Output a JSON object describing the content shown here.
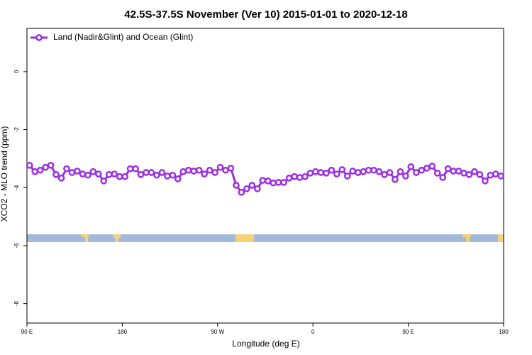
{
  "chart_data": {
    "type": "line",
    "title": "42.5S-37.5S November (Ver 10)   2015-01-01 to 2020-12-18",
    "x_label": "Longitude (deg E)",
    "y_label": "XCO2 - MLO trend (ppm)",
    "xlim": [
      90,
      540
    ],
    "ylim": [
      -8.67,
      1.49
    ],
    "xticks": [
      {
        "value": 90,
        "label": "90 E"
      },
      {
        "value": 180,
        "label": "180"
      },
      {
        "value": 270,
        "label": "90 W"
      },
      {
        "value": 360,
        "label": "0"
      },
      {
        "value": 450,
        "label": "90 E"
      },
      {
        "value": 540,
        "label": "180"
      }
    ],
    "yticks": [
      0,
      -2,
      -4,
      -6,
      -8
    ],
    "legend_position": "top-left",
    "x": [
      92.5,
      97.5,
      102.5,
      107.5,
      112.5,
      117.5,
      122.5,
      127.5,
      132.5,
      137.5,
      142.5,
      147.5,
      152.5,
      157.5,
      162.5,
      167.5,
      172.5,
      177.5,
      182.5,
      187.5,
      192.5,
      197.5,
      202.5,
      207.5,
      212.5,
      217.5,
      222.5,
      227.5,
      232.5,
      237.5,
      242.5,
      247.5,
      252.5,
      257.5,
      262.5,
      267.5,
      272.5,
      277.5,
      282.5,
      287.5,
      292.5,
      297.5,
      302.5,
      307.5,
      312.5,
      317.5,
      322.5,
      327.5,
      332.5,
      337.5,
      342.5,
      347.5,
      352.5,
      357.5,
      362.5,
      367.5,
      372.5,
      377.5,
      382.5,
      387.5,
      392.5,
      397.5,
      402.5,
      407.5,
      412.5,
      417.5,
      422.5,
      427.5,
      432.5,
      437.5,
      442.5,
      447.5,
      452.5,
      457.5,
      462.5,
      467.5,
      472.5,
      477.5,
      482.5,
      487.5,
      492.5,
      497.5,
      502.5,
      507.5,
      512.5,
      517.5,
      522.5,
      527.5,
      532.5,
      537.5
    ],
    "series": [
      {
        "name": "Land (Nadir&Glint) and Ocean (Glint)",
        "color": "#9b30e0",
        "values": [
          -3.23,
          -3.45,
          -3.4,
          -3.3,
          -3.23,
          -3.55,
          -3.67,
          -3.35,
          -3.48,
          -3.43,
          -3.53,
          -3.57,
          -3.45,
          -3.53,
          -3.77,
          -3.55,
          -3.53,
          -3.62,
          -3.62,
          -3.35,
          -3.35,
          -3.55,
          -3.48,
          -3.48,
          -3.57,
          -3.48,
          -3.6,
          -3.57,
          -3.7,
          -3.45,
          -3.4,
          -3.43,
          -3.4,
          -3.53,
          -3.4,
          -3.48,
          -3.3,
          -3.4,
          -3.33,
          -3.92,
          -4.16,
          -4.04,
          -3.92,
          -4.04,
          -3.75,
          -3.77,
          -3.84,
          -3.82,
          -3.82,
          -3.67,
          -3.62,
          -3.65,
          -3.62,
          -3.5,
          -3.45,
          -3.48,
          -3.5,
          -3.4,
          -3.53,
          -3.38,
          -3.6,
          -3.43,
          -3.48,
          -3.45,
          -3.4,
          -3.4,
          -3.45,
          -3.55,
          -3.48,
          -3.72,
          -3.45,
          -3.6,
          -3.28,
          -3.48,
          -3.4,
          -3.33,
          -3.26,
          -3.5,
          -3.65,
          -3.35,
          -3.43,
          -3.43,
          -3.5,
          -3.55,
          -3.45,
          -3.55,
          -3.77,
          -3.57,
          -3.53,
          -3.6
        ]
      }
    ]
  }
}
